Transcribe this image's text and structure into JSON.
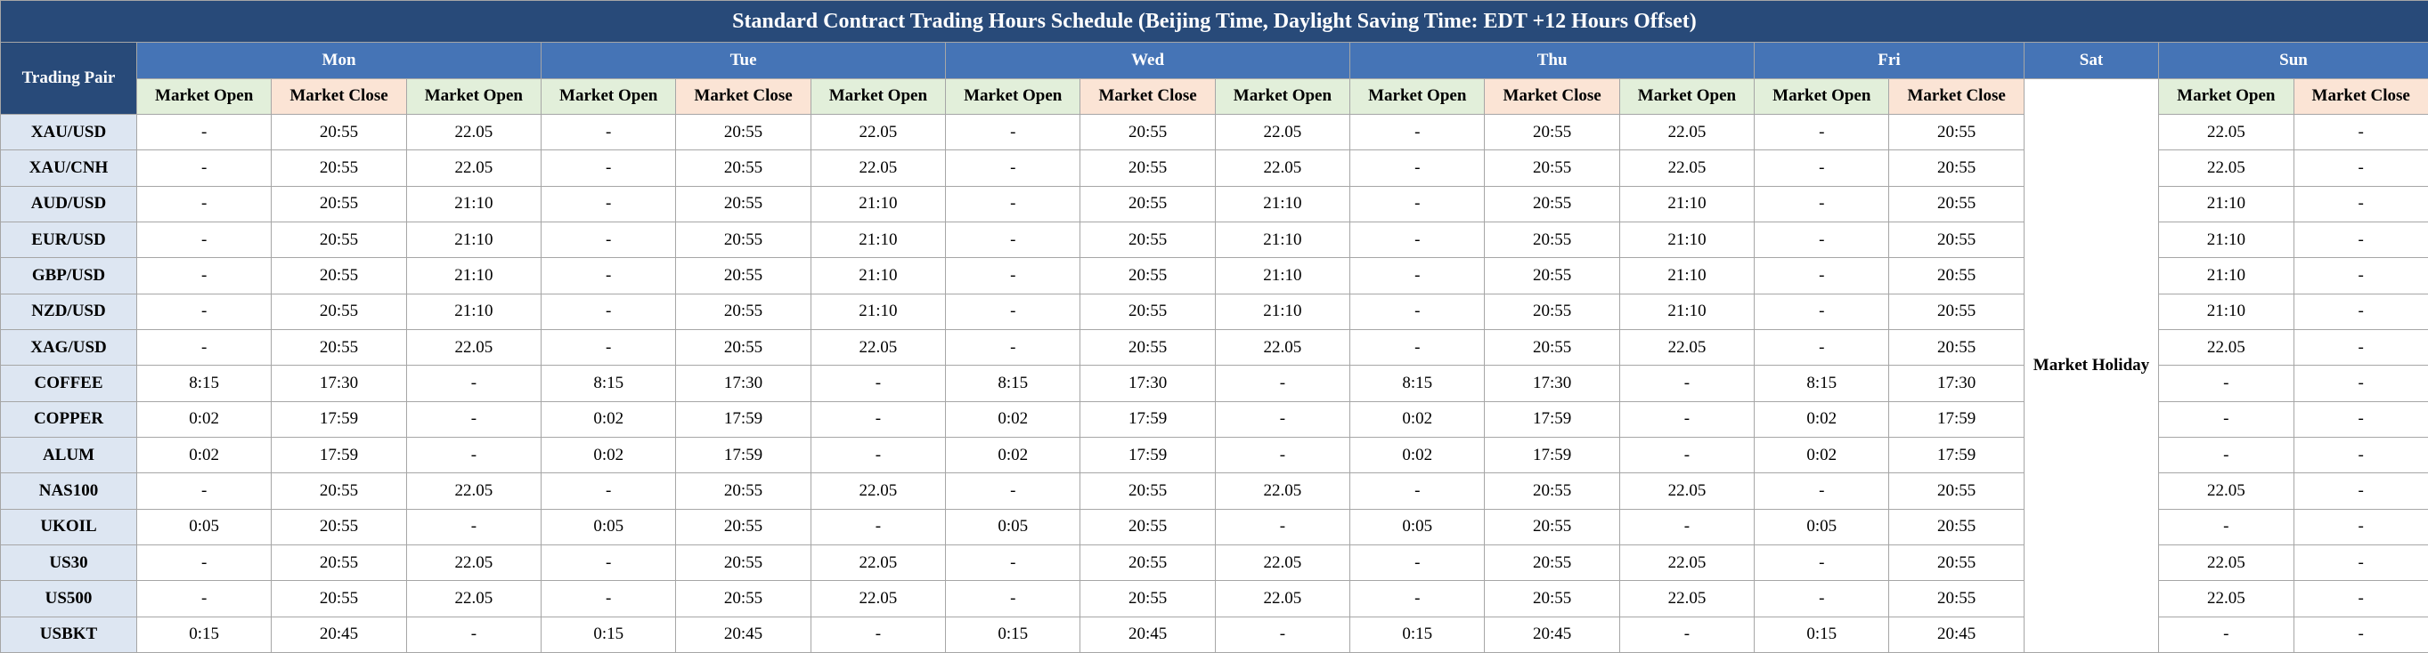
{
  "table": {
    "title": "Standard Contract Trading Hours Schedule (Beijing Time, Daylight Saving Time: EDT +12 Hours Offset)",
    "corner": "Trading Pair",
    "days": [
      {
        "name": "Mon",
        "columns": [
          "Market Open",
          "Market Close",
          "Market Open"
        ]
      },
      {
        "name": "Tue",
        "columns": [
          "Market Open",
          "Market Close",
          "Market Open"
        ]
      },
      {
        "name": "Wed",
        "columns": [
          "Market Open",
          "Market Close",
          "Market Open"
        ]
      },
      {
        "name": "Thu",
        "columns": [
          "Market Open",
          "Market Close",
          "Market Open"
        ]
      },
      {
        "name": "Fri",
        "columns": [
          "Market Open",
          "Market Close"
        ]
      },
      {
        "name": "Sat",
        "columns": []
      },
      {
        "name": "Sun",
        "columns": [
          "Market Open",
          "Market Close"
        ]
      }
    ],
    "holiday": "Market Holiday",
    "rows": [
      {
        "pair": "XAU/USD",
        "values": [
          "-",
          "20:55",
          "22.05",
          "-",
          "20:55",
          "22.05",
          "-",
          "20:55",
          "22.05",
          "-",
          "20:55",
          "22.05",
          "-",
          "20:55",
          "22.05",
          "-"
        ]
      },
      {
        "pair": "XAU/CNH",
        "values": [
          "-",
          "20:55",
          "22.05",
          "-",
          "20:55",
          "22.05",
          "-",
          "20:55",
          "22.05",
          "-",
          "20:55",
          "22.05",
          "-",
          "20:55",
          "22.05",
          "-"
        ]
      },
      {
        "pair": "AUD/USD",
        "values": [
          "-",
          "20:55",
          "21:10",
          "-",
          "20:55",
          "21:10",
          "-",
          "20:55",
          "21:10",
          "-",
          "20:55",
          "21:10",
          "-",
          "20:55",
          "21:10",
          "-"
        ]
      },
      {
        "pair": "EUR/USD",
        "values": [
          "-",
          "20:55",
          "21:10",
          "-",
          "20:55",
          "21:10",
          "-",
          "20:55",
          "21:10",
          "-",
          "20:55",
          "21:10",
          "-",
          "20:55",
          "21:10",
          "-"
        ]
      },
      {
        "pair": "GBP/USD",
        "values": [
          "-",
          "20:55",
          "21:10",
          "-",
          "20:55",
          "21:10",
          "-",
          "20:55",
          "21:10",
          "-",
          "20:55",
          "21:10",
          "-",
          "20:55",
          "21:10",
          "-"
        ]
      },
      {
        "pair": "NZD/USD",
        "values": [
          "-",
          "20:55",
          "21:10",
          "-",
          "20:55",
          "21:10",
          "-",
          "20:55",
          "21:10",
          "-",
          "20:55",
          "21:10",
          "-",
          "20:55",
          "21:10",
          "-"
        ]
      },
      {
        "pair": "XAG/USD",
        "values": [
          "-",
          "20:55",
          "22.05",
          "-",
          "20:55",
          "22.05",
          "-",
          "20:55",
          "22.05",
          "-",
          "20:55",
          "22.05",
          "-",
          "20:55",
          "22.05",
          "-"
        ]
      },
      {
        "pair": "COFFEE",
        "values": [
          "8:15",
          "17:30",
          "-",
          "8:15",
          "17:30",
          "-",
          "8:15",
          "17:30",
          "-",
          "8:15",
          "17:30",
          "-",
          "8:15",
          "17:30",
          "-",
          "-"
        ]
      },
      {
        "pair": "COPPER",
        "values": [
          "0:02",
          "17:59",
          "-",
          "0:02",
          "17:59",
          "-",
          "0:02",
          "17:59",
          "-",
          "0:02",
          "17:59",
          "-",
          "0:02",
          "17:59",
          "-",
          "-"
        ]
      },
      {
        "pair": "ALUM",
        "values": [
          "0:02",
          "17:59",
          "-",
          "0:02",
          "17:59",
          "-",
          "0:02",
          "17:59",
          "-",
          "0:02",
          "17:59",
          "-",
          "0:02",
          "17:59",
          "-",
          "-"
        ]
      },
      {
        "pair": "NAS100",
        "values": [
          "-",
          "20:55",
          "22.05",
          "-",
          "20:55",
          "22.05",
          "-",
          "20:55",
          "22.05",
          "-",
          "20:55",
          "22.05",
          "-",
          "20:55",
          "22.05",
          "-"
        ]
      },
      {
        "pair": "UKOIL",
        "values": [
          "0:05",
          "20:55",
          "-",
          "0:05",
          "20:55",
          "-",
          "0:05",
          "20:55",
          "-",
          "0:05",
          "20:55",
          "-",
          "0:05",
          "20:55",
          "-",
          "-"
        ]
      },
      {
        "pair": "US30",
        "values": [
          "-",
          "20:55",
          "22.05",
          "-",
          "20:55",
          "22.05",
          "-",
          "20:55",
          "22.05",
          "-",
          "20:55",
          "22.05",
          "-",
          "20:55",
          "22.05",
          "-"
        ]
      },
      {
        "pair": "US500",
        "values": [
          "-",
          "20:55",
          "22.05",
          "-",
          "20:55",
          "22.05",
          "-",
          "20:55",
          "22.05",
          "-",
          "20:55",
          "22.05",
          "-",
          "20:55",
          "22.05",
          "-"
        ]
      },
      {
        "pair": "USBKT",
        "values": [
          "0:15",
          "20:45",
          "-",
          "0:15",
          "20:45",
          "-",
          "0:15",
          "20:45",
          "-",
          "0:15",
          "20:45",
          "-",
          "0:15",
          "20:45",
          "-",
          "-"
        ]
      }
    ]
  }
}
